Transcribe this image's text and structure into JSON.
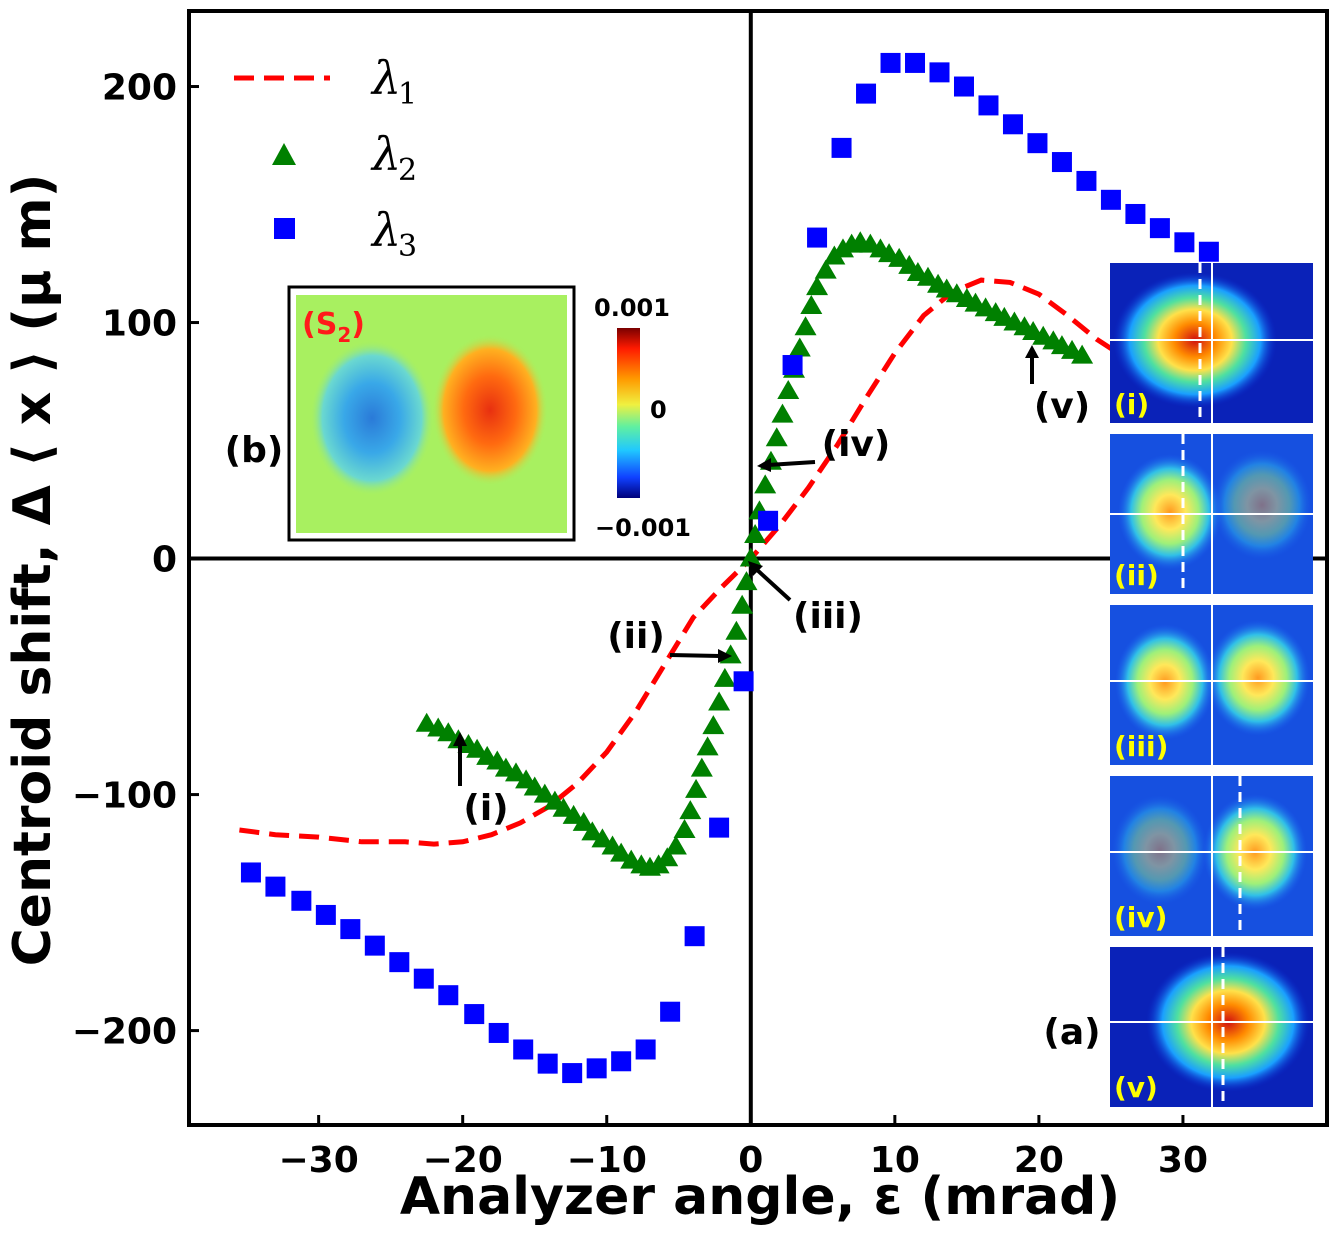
{
  "chart_data": {
    "type": "scatter",
    "xlabel": "Analyzer angle, ε (mrad)",
    "ylabel": "Centroid shift, Δ ⟨ x ⟩ (μ m)",
    "xlim": [
      -39,
      40
    ],
    "ylim": [
      -240,
      232
    ],
    "xticks": [
      -30,
      -20,
      -10,
      0,
      10,
      20,
      30
    ],
    "yticks": [
      -200,
      -100,
      0,
      100,
      200
    ],
    "xtick_labels": [
      "−30",
      "−20",
      "−10",
      "0",
      "10",
      "20",
      "30"
    ],
    "ytick_labels": [
      "−200",
      "−100",
      "0",
      "100",
      "200"
    ],
    "legend_position": "top-left",
    "series": [
      {
        "name": "λ1",
        "subscript": "1",
        "style": "dashed-line",
        "color": "#ff0000",
        "x": [
          -35.5,
          -33,
          -30,
          -27,
          -24,
          -22,
          -20,
          -18,
          -16,
          -14,
          -12,
          -10,
          -8,
          -6,
          -4,
          -2,
          0,
          2,
          4,
          6,
          8,
          10,
          12,
          14,
          16,
          18,
          20,
          22,
          24,
          26
        ],
        "y": [
          -115,
          -117,
          -118,
          -120,
          -120,
          -121,
          -120,
          -117,
          -112,
          -105,
          -95,
          -82,
          -65,
          -45,
          -25,
          -12,
          0,
          14,
          30,
          48,
          68,
          87,
          103,
          113,
          118,
          117,
          112,
          103,
          93,
          85
        ]
      },
      {
        "name": "λ2",
        "subscript": "2",
        "style": "triangle-marker",
        "color": "#008000",
        "x": [
          -22.5,
          -21.7,
          -21,
          -20.3,
          -19.6,
          -19,
          -18.3,
          -17.6,
          -17,
          -16.3,
          -15.6,
          -15,
          -14.3,
          -13.6,
          -13,
          -12.3,
          -11.6,
          -11,
          -10.3,
          -9.6,
          -9,
          -8.3,
          -7.6,
          -7,
          -6.4,
          -5.8,
          -5.2,
          -4.6,
          -4.2,
          -3.8,
          -3.4,
          -3,
          -2.6,
          -2.2,
          -1.8,
          -1.4,
          -1,
          -0.6,
          -0.3,
          0,
          0.3,
          0.6,
          1,
          1.4,
          1.8,
          2.2,
          2.6,
          3,
          3.4,
          3.8,
          4.2,
          4.6,
          5.2,
          5.8,
          6.4,
          7,
          7.6,
          8.3,
          9,
          9.6,
          10.3,
          11,
          11.6,
          12.3,
          13,
          13.6,
          14.3,
          15,
          15.6,
          16.3,
          17,
          17.6,
          18.3,
          19,
          19.6,
          20.3,
          21,
          21.6,
          22.3,
          23
        ],
        "y": [
          -70,
          -72,
          -74,
          -77,
          -79,
          -81,
          -84,
          -86,
          -89,
          -91,
          -94,
          -97,
          -100,
          -103,
          -106,
          -109,
          -112,
          -116,
          -119,
          -122,
          -125,
          -128,
          -130,
          -131,
          -130,
          -127,
          -122,
          -115,
          -107,
          -98,
          -89,
          -80,
          -71,
          -61,
          -51,
          -41,
          -31,
          -20,
          -10,
          0,
          10,
          20,
          31,
          41,
          51,
          61,
          71,
          80,
          89,
          98,
          107,
          115,
          122,
          128,
          131,
          133,
          134,
          133,
          131,
          129,
          127,
          124,
          121,
          119,
          116,
          114,
          112,
          110,
          108,
          106,
          104,
          102,
          100,
          98,
          96,
          94,
          92,
          90,
          88,
          86
        ]
      },
      {
        "name": "λ3",
        "subscript": "3",
        "style": "square-marker",
        "color": "#0000ff",
        "x": [
          -34.7,
          -33,
          -31.2,
          -29.5,
          -27.8,
          -26.1,
          -24.4,
          -22.7,
          -21,
          -19.2,
          -17.5,
          -15.8,
          -14.1,
          -12.4,
          -10.7,
          -9,
          -7.3,
          -5.6,
          -3.9,
          -2.2,
          -0.5,
          1.2,
          2.9,
          4.6,
          6.3,
          8,
          9.7,
          11.4,
          13.1,
          14.8,
          16.5,
          18.2,
          19.9,
          21.6,
          23.3,
          25,
          26.7,
          28.4,
          30.1,
          31.8
        ],
        "y": [
          -133,
          -139,
          -145,
          -151,
          -157,
          -164,
          -171,
          -178,
          -185,
          -193,
          -201,
          -208,
          -214,
          -218,
          -216,
          -213,
          -208,
          -192,
          -160,
          -114,
          -52,
          16,
          82,
          136,
          174,
          197,
          210,
          210,
          206,
          200,
          192,
          184,
          176,
          168,
          160,
          152,
          146,
          140,
          134,
          130
        ]
      }
    ],
    "annotations": [
      "(i)",
      "(ii)",
      "(iii)",
      "(iv)",
      "(v)"
    ],
    "inset_a": {
      "label": "(a)",
      "panels": [
        "(i)",
        "(ii)",
        "(iii)",
        "(iv)",
        "(v)"
      ]
    },
    "inset_b": {
      "label": "(b)",
      "title": "(S",
      "title_sub": "2",
      "title_close": ")",
      "colorbar_max": "0.001",
      "colorbar_mid": "0",
      "colorbar_min": "−0.001"
    }
  }
}
